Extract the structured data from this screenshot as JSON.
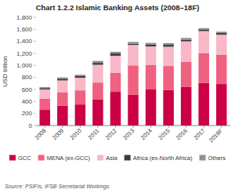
{
  "chart_data": {
    "type": "bar",
    "stacked": true,
    "grid": false,
    "legend": "bottom",
    "title": "Chart 1.2.2 Islamic Banking Assets (2008–18F)",
    "ylabel": "USD billion",
    "source": "Source: PSIFIs, IFSB Secretariat Workings",
    "categories": [
      "2008",
      "2009",
      "2010",
      "2011",
      "2012",
      "2013",
      "2014",
      "2015",
      "2016",
      "2017",
      "2018F"
    ],
    "series": [
      {
        "name": "GCC",
        "color": "#cc0044",
        "values": [
          260,
          330,
          350,
          430,
          560,
          510,
          600,
          590,
          640,
          710,
          690
        ]
      },
      {
        "name": "MENA (ex-GCC)",
        "color": "#f06080",
        "values": [
          185,
          225,
          235,
          285,
          315,
          490,
          410,
          400,
          420,
          490,
          490
        ]
      },
      {
        "name": "Asia",
        "color": "#f8b8c8",
        "values": [
          155,
          195,
          210,
          295,
          285,
          340,
          305,
          320,
          340,
          370,
          330
        ]
      },
      {
        "name": "Africa (ex-North Africa)",
        "color": "#3a3a3a",
        "values": [
          22,
          28,
          28,
          32,
          38,
          22,
          32,
          32,
          28,
          28,
          28
        ]
      },
      {
        "name": "Others",
        "color": "#909090",
        "values": [
          18,
          22,
          22,
          32,
          28,
          28,
          28,
          28,
          28,
          22,
          22
        ]
      }
    ],
    "ylim": [
      0,
      1800
    ],
    "yticks": [
      0,
      200,
      400,
      600,
      800,
      {
        "value": 1000,
        "label": "1,000"
      },
      {
        "value": 1200,
        "label": "1,200"
      },
      {
        "value": 1400,
        "label": "1,400"
      },
      {
        "value": 1600,
        "label": "1,600"
      },
      {
        "value": 1800,
        "label": "1,800"
      }
    ]
  }
}
